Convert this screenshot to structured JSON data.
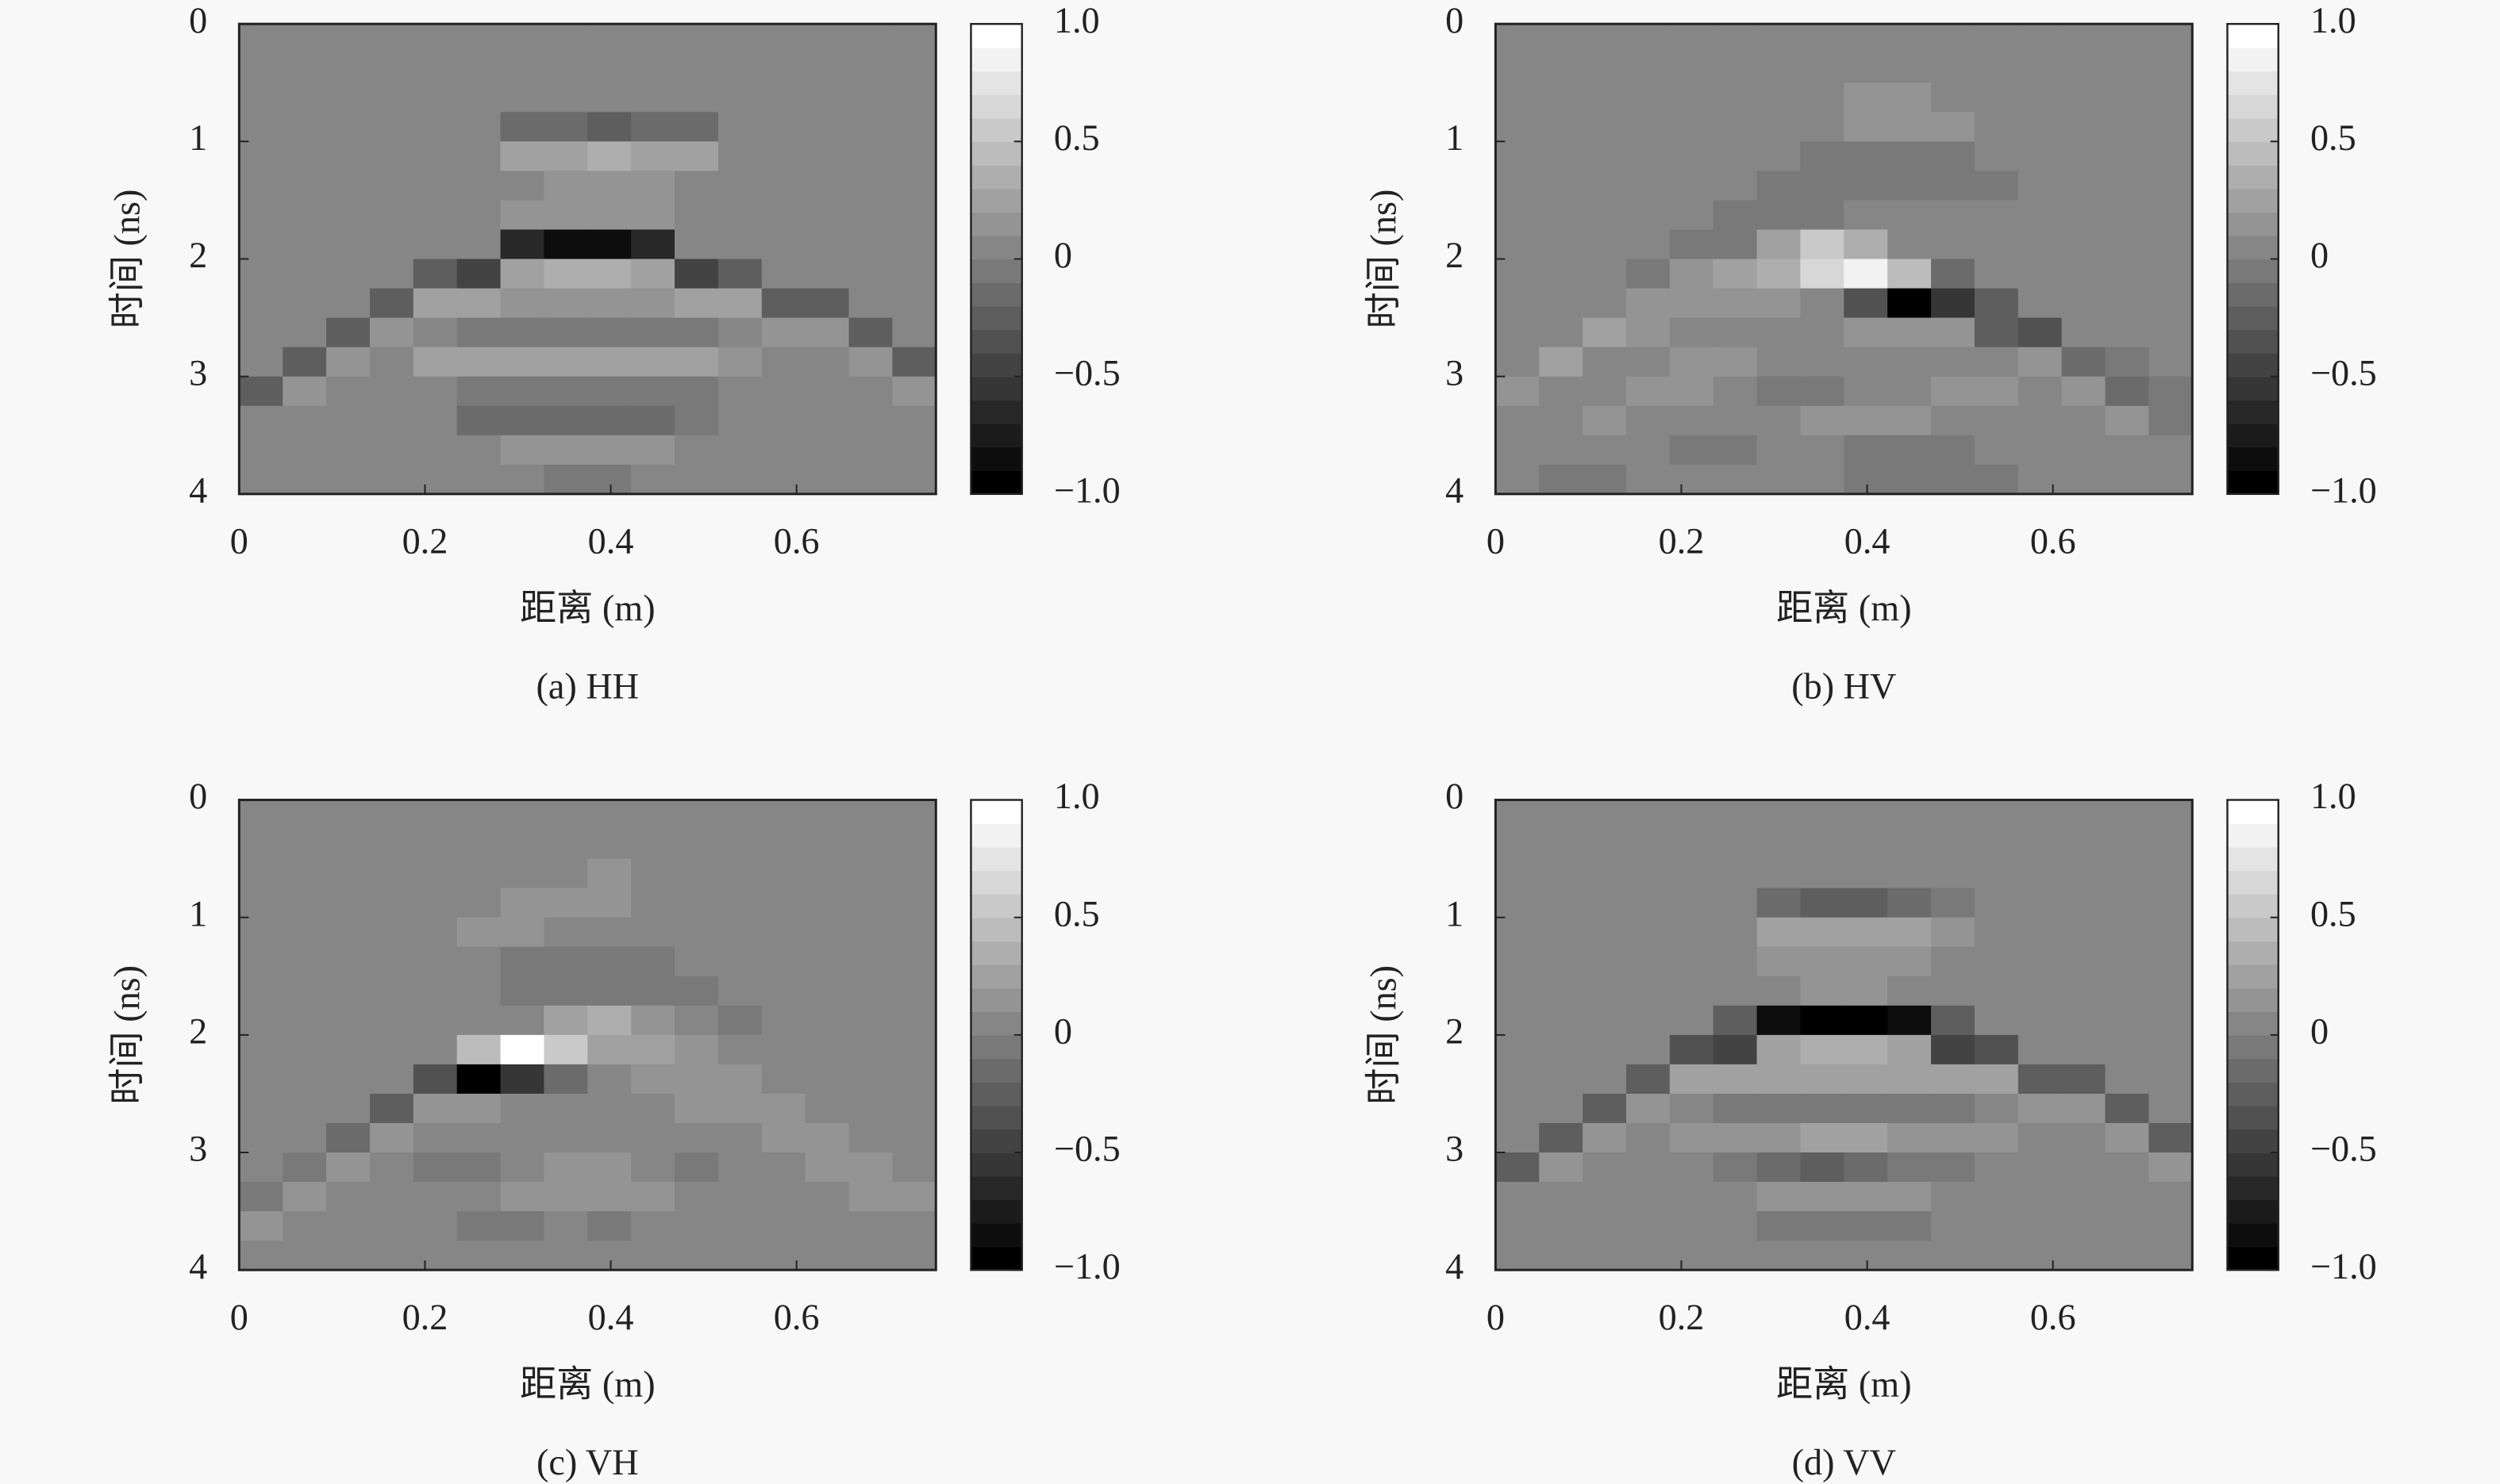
{
  "chart_data": [
    {
      "type": "heatmap",
      "title": "(a) HH",
      "xlabel": "距离 (m)",
      "ylabel": "时间 (ns)",
      "xlim": [
        0,
        0.75
      ],
      "ylim": [
        0,
        4
      ],
      "invert_y": true,
      "xticks": [
        0,
        0.2,
        0.4,
        0.6
      ],
      "yticks": [
        0,
        1,
        2,
        3,
        4
      ],
      "colormap": "gray",
      "levels": 20,
      "zlim": [
        -1,
        1
      ],
      "zticks": [
        {
          "value": 1,
          "label": "1.0"
        },
        0.5,
        0,
        {
          "value": -0.5,
          "label": "−0.5"
        },
        {
          "value": -1,
          "label": "−1.0"
        }
      ],
      "z": [
        [
          0,
          0,
          0,
          0,
          0,
          0,
          0,
          0,
          0,
          0,
          0,
          0,
          0,
          0,
          0,
          0
        ],
        [
          0,
          0,
          0,
          0,
          0,
          0,
          0,
          0,
          0,
          0,
          0,
          0,
          0,
          0,
          0,
          0
        ],
        [
          0,
          0,
          0,
          0,
          0,
          0,
          0,
          0,
          0,
          0,
          0,
          0,
          0,
          0,
          0,
          0
        ],
        [
          0,
          0,
          0,
          0,
          0,
          0,
          -0.2,
          -0.2,
          -0.3,
          -0.2,
          -0.2,
          0,
          0,
          0,
          0,
          0
        ],
        [
          0,
          0,
          0,
          0,
          0,
          0,
          0.2,
          0.2,
          0.3,
          0.2,
          0.2,
          0,
          0,
          0,
          0,
          0
        ],
        [
          0,
          0,
          0,
          0,
          0,
          0,
          0,
          0.1,
          0.1,
          0.1,
          0,
          0,
          0,
          0,
          0,
          0
        ],
        [
          0,
          0,
          0,
          0,
          0,
          0,
          0.1,
          0.1,
          0.1,
          0.1,
          0,
          0,
          0,
          0,
          0,
          0
        ],
        [
          0,
          0,
          0,
          0,
          0,
          0,
          -0.7,
          -0.8,
          -0.8,
          -0.7,
          0,
          0,
          0,
          0,
          0,
          0
        ],
        [
          0,
          0,
          0,
          0,
          -0.3,
          -0.5,
          0.2,
          0.3,
          0.3,
          0.2,
          -0.5,
          -0.3,
          0,
          0,
          0,
          0
        ],
        [
          0,
          0,
          0,
          -0.3,
          0.2,
          0.2,
          0.1,
          0.1,
          0.1,
          0.1,
          0.2,
          0.2,
          -0.3,
          -0.3,
          0,
          0
        ],
        [
          0,
          0,
          -0.3,
          0.1,
          0,
          -0.1,
          -0.1,
          -0.1,
          -0.1,
          -0.1,
          -0.1,
          0,
          0.1,
          0.1,
          -0.3,
          0
        ],
        [
          0,
          -0.3,
          0.1,
          0,
          0.2,
          0.2,
          0.2,
          0.2,
          0.2,
          0.2,
          0.2,
          0.1,
          0,
          0,
          0.1,
          -0.3
        ],
        [
          -0.3,
          0.1,
          0,
          0,
          0,
          -0.1,
          -0.1,
          -0.1,
          -0.1,
          -0.1,
          -0.1,
          0,
          0,
          0,
          0,
          0.1
        ],
        [
          0,
          0,
          0,
          0,
          0,
          -0.2,
          -0.2,
          -0.2,
          -0.2,
          -0.2,
          -0.1,
          0,
          0,
          0,
          0,
          0
        ],
        [
          0,
          0,
          0,
          0,
          0,
          0,
          0.1,
          0.1,
          0.1,
          0.1,
          0,
          0,
          0,
          0,
          0,
          0
        ],
        [
          0,
          0,
          0,
          0,
          0,
          0,
          0,
          -0.1,
          -0.1,
          0,
          0,
          0,
          0,
          0,
          0,
          0
        ]
      ]
    },
    {
      "type": "heatmap",
      "title": "(b) HV",
      "xlabel": "距离 (m)",
      "ylabel": "时间 (ns)",
      "xlim": [
        0,
        0.75
      ],
      "ylim": [
        0,
        4
      ],
      "invert_y": true,
      "xticks": [
        0,
        0.2,
        0.4,
        0.6
      ],
      "yticks": [
        0,
        1,
        2,
        3,
        4
      ],
      "colormap": "gray",
      "levels": 20,
      "zlim": [
        -1,
        1
      ],
      "zticks": [
        {
          "value": 1,
          "label": "1.0"
        },
        0.5,
        0,
        {
          "value": -0.5,
          "label": "−0.5"
        },
        {
          "value": -1,
          "label": "−1.0"
        }
      ],
      "z": [
        [
          0,
          0,
          0,
          0,
          0,
          0,
          0,
          0,
          0,
          0,
          0,
          0,
          0,
          0,
          0,
          0
        ],
        [
          0,
          0,
          0,
          0,
          0,
          0,
          0,
          0,
          0,
          0,
          0,
          0,
          0,
          0,
          0,
          0
        ],
        [
          0,
          0,
          0,
          0,
          0,
          0,
          0,
          0,
          0.1,
          0.1,
          0,
          0,
          0,
          0,
          0,
          0
        ],
        [
          0,
          0,
          0,
          0,
          0,
          0,
          0,
          0,
          0.1,
          0.1,
          0.1,
          0,
          0,
          0,
          0,
          0
        ],
        [
          0,
          0,
          0,
          0,
          0,
          0,
          0,
          -0.1,
          -0.1,
          -0.1,
          -0.1,
          0,
          0,
          0,
          0,
          0
        ],
        [
          0,
          0,
          0,
          0,
          0,
          0,
          -0.1,
          -0.1,
          -0.1,
          -0.1,
          -0.1,
          -0.1,
          0,
          0,
          0,
          0
        ],
        [
          0,
          0,
          0,
          0,
          0,
          -0.1,
          -0.1,
          -0.1,
          0,
          0,
          0,
          0,
          0,
          0,
          0,
          0
        ],
        [
          0,
          0,
          0,
          0,
          -0.1,
          -0.1,
          0.2,
          0.5,
          0.3,
          0,
          0,
          0,
          0,
          0,
          0,
          0
        ],
        [
          0,
          0,
          0,
          -0.1,
          0.1,
          0.2,
          0.3,
          0.6,
          0.8,
          0.4,
          -0.2,
          0,
          0,
          0,
          0,
          0
        ],
        [
          0,
          0,
          0,
          0.1,
          0.1,
          0.1,
          0.1,
          0,
          -0.4,
          -0.9,
          -0.6,
          -0.3,
          0,
          0,
          0,
          0
        ],
        [
          0,
          0,
          0.2,
          0.1,
          0,
          0,
          0,
          0,
          0.1,
          0.1,
          0.1,
          -0.3,
          -0.4,
          0,
          0,
          0
        ],
        [
          0,
          0.2,
          0,
          0,
          0.1,
          0.1,
          0,
          0,
          0,
          0,
          0,
          0,
          0.1,
          -0.2,
          -0.1,
          0
        ],
        [
          0.1,
          0,
          0,
          0.1,
          0.1,
          0,
          -0.1,
          -0.1,
          0,
          0,
          0.1,
          0.1,
          0,
          0.1,
          -0.2,
          -0.1
        ],
        [
          0,
          0,
          0.1,
          0,
          0,
          0,
          0,
          0.1,
          0.1,
          0.1,
          0,
          0,
          0,
          0,
          0.1,
          -0.1
        ],
        [
          0,
          0,
          0,
          0,
          -0.1,
          -0.1,
          0,
          0,
          -0.1,
          -0.1,
          -0.1,
          0,
          0,
          0,
          0,
          0
        ],
        [
          0,
          -0.1,
          -0.1,
          0,
          0,
          0,
          0,
          0,
          -0.1,
          -0.1,
          -0.1,
          -0.1,
          0,
          0,
          0,
          0
        ]
      ]
    },
    {
      "type": "heatmap",
      "title": "(c) VH",
      "xlabel": "距离 (m)",
      "ylabel": "时间 (ns)",
      "xlim": [
        0,
        0.75
      ],
      "ylim": [
        0,
        4
      ],
      "invert_y": true,
      "xticks": [
        0,
        0.2,
        0.4,
        0.6
      ],
      "yticks": [
        0,
        1,
        2,
        3,
        4
      ],
      "colormap": "gray",
      "levels": 20,
      "zlim": [
        -1,
        1
      ],
      "zticks": [
        {
          "value": 1,
          "label": "1.0"
        },
        0.5,
        0,
        {
          "value": -0.5,
          "label": "−0.5"
        },
        {
          "value": -1,
          "label": "−1.0"
        }
      ],
      "z": [
        [
          0,
          0,
          0,
          0,
          0,
          0,
          0,
          0,
          0,
          0,
          0,
          0,
          0,
          0,
          0,
          0
        ],
        [
          0,
          0,
          0,
          0,
          0,
          0,
          0,
          0,
          0,
          0,
          0,
          0,
          0,
          0,
          0,
          0
        ],
        [
          0,
          0,
          0,
          0,
          0,
          0,
          0,
          0,
          0.1,
          0,
          0,
          0,
          0,
          0,
          0,
          0
        ],
        [
          0,
          0,
          0,
          0,
          0,
          0,
          0.1,
          0.1,
          0.1,
          0,
          0,
          0,
          0,
          0,
          0,
          0
        ],
        [
          0,
          0,
          0,
          0,
          0,
          0.1,
          0.1,
          0,
          0,
          0,
          0,
          0,
          0,
          0,
          0,
          0
        ],
        [
          0,
          0,
          0,
          0,
          0,
          0,
          -0.1,
          -0.1,
          -0.1,
          -0.1,
          0,
          0,
          0,
          0,
          0,
          0
        ],
        [
          0,
          0,
          0,
          0,
          0,
          0,
          -0.1,
          -0.1,
          -0.1,
          -0.1,
          -0.1,
          0,
          0,
          0,
          0,
          0
        ],
        [
          0,
          0,
          0,
          0,
          0,
          0,
          0,
          0.2,
          0.3,
          0.1,
          0,
          -0.1,
          0,
          0,
          0,
          0
        ],
        [
          0,
          0,
          0,
          0,
          0,
          0.4,
          0.9,
          0.5,
          0.2,
          0.2,
          0.1,
          0,
          0,
          0,
          0,
          0
        ],
        [
          0,
          0,
          0,
          0,
          -0.4,
          -0.9,
          -0.6,
          -0.2,
          0,
          0.1,
          0.1,
          0.1,
          0,
          0,
          0,
          0
        ],
        [
          0,
          0,
          0,
          -0.3,
          0.1,
          0.1,
          0,
          0,
          0,
          0,
          0.1,
          0.1,
          0.1,
          0,
          0,
          0
        ],
        [
          0,
          0,
          -0.2,
          0.1,
          0,
          0,
          0,
          0,
          0,
          0,
          0,
          0,
          0.1,
          0.1,
          0,
          0
        ],
        [
          0,
          -0.1,
          0.1,
          0,
          -0.1,
          -0.1,
          0,
          0.1,
          0.1,
          0,
          -0.1,
          0,
          0,
          0.1,
          0.1,
          0
        ],
        [
          -0.1,
          0.1,
          0,
          0,
          0,
          0,
          0.1,
          0.1,
          0.1,
          0.1,
          0,
          0,
          0,
          0,
          0.1,
          0.1
        ],
        [
          0.1,
          0,
          0,
          0,
          0,
          -0.1,
          -0.1,
          0,
          -0.1,
          0,
          0,
          0,
          0,
          0,
          0,
          0
        ],
        [
          0,
          0,
          0,
          0,
          0,
          0,
          0,
          0,
          0,
          0,
          0,
          0,
          0,
          0,
          0,
          0
        ]
      ]
    },
    {
      "type": "heatmap",
      "title": "(d) VV",
      "xlabel": "距离 (m)",
      "ylabel": "时间 (ns)",
      "xlim": [
        0,
        0.75
      ],
      "ylim": [
        0,
        4
      ],
      "invert_y": true,
      "xticks": [
        0,
        0.2,
        0.4,
        0.6
      ],
      "yticks": [
        0,
        1,
        2,
        3,
        4
      ],
      "colormap": "gray",
      "levels": 20,
      "zlim": [
        -1,
        1
      ],
      "zticks": [
        {
          "value": 1,
          "label": "1.0"
        },
        0.5,
        0,
        {
          "value": -0.5,
          "label": "−0.5"
        },
        {
          "value": -1,
          "label": "−1.0"
        }
      ],
      "z": [
        [
          0,
          0,
          0,
          0,
          0,
          0,
          0,
          0,
          0,
          0,
          0,
          0,
          0,
          0,
          0,
          0
        ],
        [
          0,
          0,
          0,
          0,
          0,
          0,
          0,
          0,
          0,
          0,
          0,
          0,
          0,
          0,
          0,
          0
        ],
        [
          0,
          0,
          0,
          0,
          0,
          0,
          0,
          0,
          0,
          0,
          0,
          0,
          0,
          0,
          0,
          0
        ],
        [
          0,
          0,
          0,
          0,
          0,
          0,
          -0.2,
          -0.3,
          -0.3,
          -0.2,
          -0.1,
          0,
          0,
          0,
          0,
          0
        ],
        [
          0,
          0,
          0,
          0,
          0,
          0,
          0.2,
          0.2,
          0.2,
          0.2,
          0.1,
          0,
          0,
          0,
          0,
          0
        ],
        [
          0,
          0,
          0,
          0,
          0,
          0,
          0.1,
          0.1,
          0.1,
          0.1,
          0,
          0,
          0,
          0,
          0,
          0
        ],
        [
          0,
          0,
          0,
          0,
          0,
          0,
          0,
          0.1,
          0.1,
          0,
          0,
          0,
          0,
          0,
          0,
          0
        ],
        [
          0,
          0,
          0,
          0,
          0,
          -0.3,
          -0.8,
          -0.9,
          -0.9,
          -0.8,
          -0.3,
          0,
          0,
          0,
          0,
          0
        ],
        [
          0,
          0,
          0,
          0,
          -0.4,
          -0.5,
          0.2,
          0.3,
          0.3,
          0.2,
          -0.5,
          -0.4,
          0,
          0,
          0,
          0
        ],
        [
          0,
          0,
          0,
          -0.3,
          0.2,
          0.2,
          0.2,
          0.2,
          0.2,
          0.2,
          0.2,
          0.2,
          -0.3,
          -0.3,
          0,
          0
        ],
        [
          0,
          0,
          -0.3,
          0.1,
          0,
          -0.1,
          -0.1,
          -0.1,
          -0.1,
          -0.1,
          -0.1,
          0,
          0.1,
          0.1,
          -0.3,
          0
        ],
        [
          0,
          -0.3,
          0.1,
          0,
          0.1,
          0.1,
          0.1,
          0.2,
          0.2,
          0.1,
          0.1,
          0.1,
          0,
          0,
          0.1,
          -0.3
        ],
        [
          -0.3,
          0.1,
          0,
          0,
          0,
          -0.1,
          -0.2,
          -0.3,
          -0.2,
          -0.1,
          -0.1,
          0,
          0,
          0,
          0,
          0.1
        ],
        [
          0,
          0,
          0,
          0,
          0,
          0,
          0.1,
          0.1,
          0.1,
          0.1,
          0,
          0,
          0,
          0,
          0,
          0
        ],
        [
          0,
          0,
          0,
          0,
          0,
          0,
          -0.1,
          -0.1,
          -0.1,
          -0.1,
          0,
          0,
          0,
          0,
          0,
          0
        ],
        [
          0,
          0,
          0,
          0,
          0,
          0,
          0,
          0,
          0,
          0,
          0,
          0,
          0,
          0,
          0,
          0
        ]
      ]
    }
  ]
}
